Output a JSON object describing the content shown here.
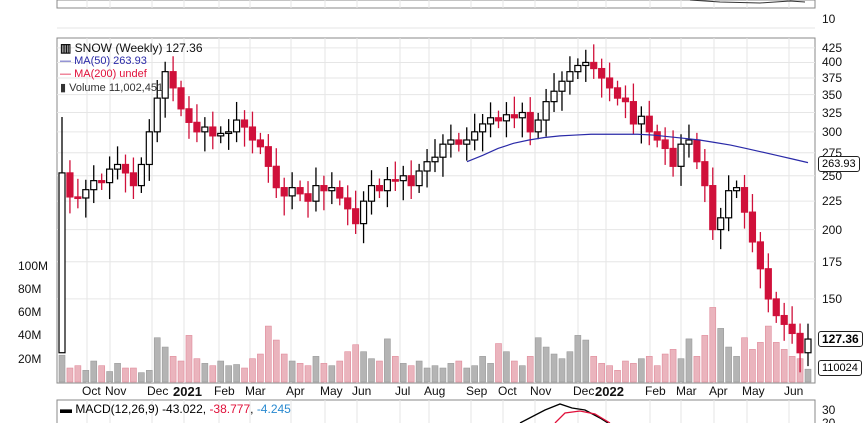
{
  "chart_data": {
    "type": "candlestick",
    "title": "SNOW (Weekly) 127.36",
    "legend": {
      "symbol": "SNOW (Weekly) 127.36",
      "ma50": "MA(50) 263.93",
      "ma200": "MA(200) undef",
      "volume": "Volume 11,002,451"
    },
    "price_ticks": [
      "425",
      "400",
      "375",
      "350",
      "325",
      "300",
      "275",
      "250",
      "225",
      "200",
      "175",
      "150"
    ],
    "volume_ticks": [
      "100M",
      "80M",
      "60M",
      "40M",
      "20M"
    ],
    "x_labels": [
      "Oct",
      "Nov",
      "Dec",
      "2021",
      "Feb",
      "Mar",
      "Apr",
      "May",
      "Jun",
      "Jul",
      "Aug",
      "Sep",
      "Oct",
      "Nov",
      "Dec",
      "2022",
      "Feb",
      "Mar",
      "Apr",
      "May",
      "Jun"
    ],
    "last_price_tag": "127.36",
    "ma50_tag": "263.93",
    "volume_tag": "110024",
    "top_panel_tick": "10",
    "macd": {
      "label": "MACD(12,26,9)",
      "macd": "-43.022",
      "signal": "-38.777",
      "hist": "-4.245",
      "ticks": [
        "30",
        "20"
      ]
    },
    "colors": {
      "up": "#000000",
      "down": "#d0103a",
      "ma50": "#2a2aa8",
      "ma200": "#e0103a",
      "vol_up": "#b4b4b4",
      "vol_down": "#eab4bd"
    },
    "open0": 120,
    "high0": 319,
    "low0": 120,
    "closes": [
      253,
      229,
      228,
      236,
      245,
      243,
      257,
      262,
      253,
      240,
      262,
      300,
      345,
      385,
      360,
      330,
      312,
      300,
      306,
      295,
      298,
      300,
      315,
      306,
      290,
      282,
      260,
      238,
      230,
      238,
      232,
      225,
      240,
      235,
      238,
      228,
      218,
      205,
      225,
      240,
      235,
      246,
      245,
      250,
      240,
      255,
      265,
      270,
      285,
      290,
      285,
      290,
      300,
      310,
      318,
      314,
      322,
      318,
      325,
      300,
      315,
      340,
      355,
      370,
      385,
      395,
      400,
      390,
      375,
      360,
      345,
      340,
      310,
      320,
      300,
      290,
      280,
      260,
      285,
      290,
      265,
      240,
      200,
      210,
      235,
      238,
      215,
      190,
      170,
      150,
      140,
      135,
      130,
      120,
      127
    ],
    "volumes_m": [
      23,
      12,
      14,
      10,
      18,
      14,
      9,
      16,
      12,
      12,
      8,
      10,
      38,
      30,
      22,
      18,
      40,
      20,
      16,
      14,
      18,
      14,
      15,
      12,
      20,
      24,
      48,
      36,
      24,
      18,
      16,
      14,
      22,
      16,
      14,
      18,
      26,
      32,
      26,
      20,
      18,
      37,
      22,
      16,
      14,
      18,
      12,
      14,
      12,
      16,
      18,
      12,
      14,
      22,
      16,
      33,
      26,
      18,
      14,
      22,
      38,
      30,
      24,
      20,
      26,
      40,
      36,
      22,
      16,
      14,
      10,
      18,
      16,
      20,
      22,
      14,
      24,
      28,
      20,
      37,
      22,
      40,
      64,
      46,
      30,
      22,
      38,
      28,
      34,
      48,
      34,
      28,
      22,
      20,
      11
    ],
    "ma50": [
      265,
      272,
      280,
      286,
      290,
      293,
      295,
      296,
      297,
      297,
      297,
      297,
      296,
      294,
      292,
      290,
      287,
      284,
      280,
      276,
      272,
      268,
      264
    ]
  }
}
